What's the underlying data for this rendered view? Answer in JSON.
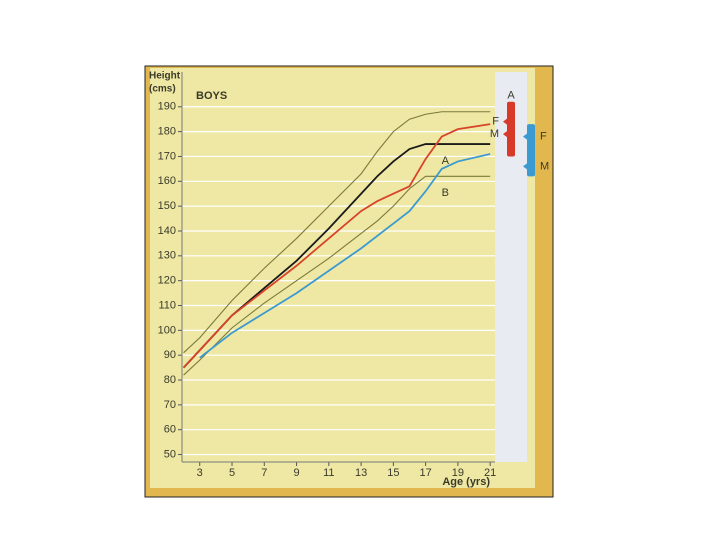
{
  "chart_data": {
    "type": "line",
    "title": "BOYS",
    "y_label_lines": [
      "Height",
      "(cms)"
    ],
    "x_label": "Age (yrs)",
    "x": [
      2,
      3,
      5,
      7,
      9,
      11,
      13,
      14,
      15,
      16,
      17,
      18,
      19,
      21
    ],
    "xlim": [
      1.9,
      21.3
    ],
    "xticks": [
      3,
      5,
      7,
      9,
      11,
      13,
      15,
      17,
      19,
      21
    ],
    "ylim": [
      47,
      204
    ],
    "yticks": [
      50,
      60,
      70,
      80,
      90,
      100,
      110,
      120,
      130,
      140,
      150,
      160,
      170,
      180,
      190
    ],
    "grid": true,
    "series": [
      {
        "color": "#7a7a3a",
        "values": [
          91,
          97,
          112,
          125,
          137,
          150,
          163,
          172,
          180,
          185,
          187,
          188,
          188,
          188
        ]
      },
      {
        "color": "#1a1a1a",
        "values": [
          85,
          92,
          106,
          117,
          128,
          141,
          155,
          162,
          168,
          173,
          175,
          175,
          175,
          175
        ]
      },
      {
        "name": "A",
        "color": "#d8442a",
        "values": [
          85,
          92,
          106,
          116,
          126,
          137,
          148,
          152,
          155,
          158,
          169,
          178,
          181,
          183
        ]
      },
      {
        "color": "#7a7a3a",
        "values": [
          82,
          88,
          101,
          111,
          120,
          129,
          139,
          144,
          150,
          157,
          162,
          162,
          162,
          162
        ]
      },
      {
        "name": "B",
        "color": "#3b9ad0",
        "values": [
          null,
          89,
          99,
          107,
          115,
          124,
          133,
          138,
          143,
          148,
          156,
          165,
          168,
          171
        ]
      }
    ],
    "target_ranges": [
      {
        "label": "A",
        "low": 170,
        "high": 192,
        "color": "#d83a2a"
      },
      {
        "low": 162,
        "high": 183,
        "color": "#3b9ad0"
      }
    ],
    "parent_marks": [
      {
        "label": "F",
        "value": 184,
        "color": "#d83a2a"
      },
      {
        "label": "M",
        "value": 179,
        "color": "#d83a2a"
      },
      {
        "label": "F",
        "value": 178,
        "color": "#3b9ad0"
      },
      {
        "label": "M",
        "value": 166,
        "color": "#3b9ad0"
      }
    ]
  }
}
